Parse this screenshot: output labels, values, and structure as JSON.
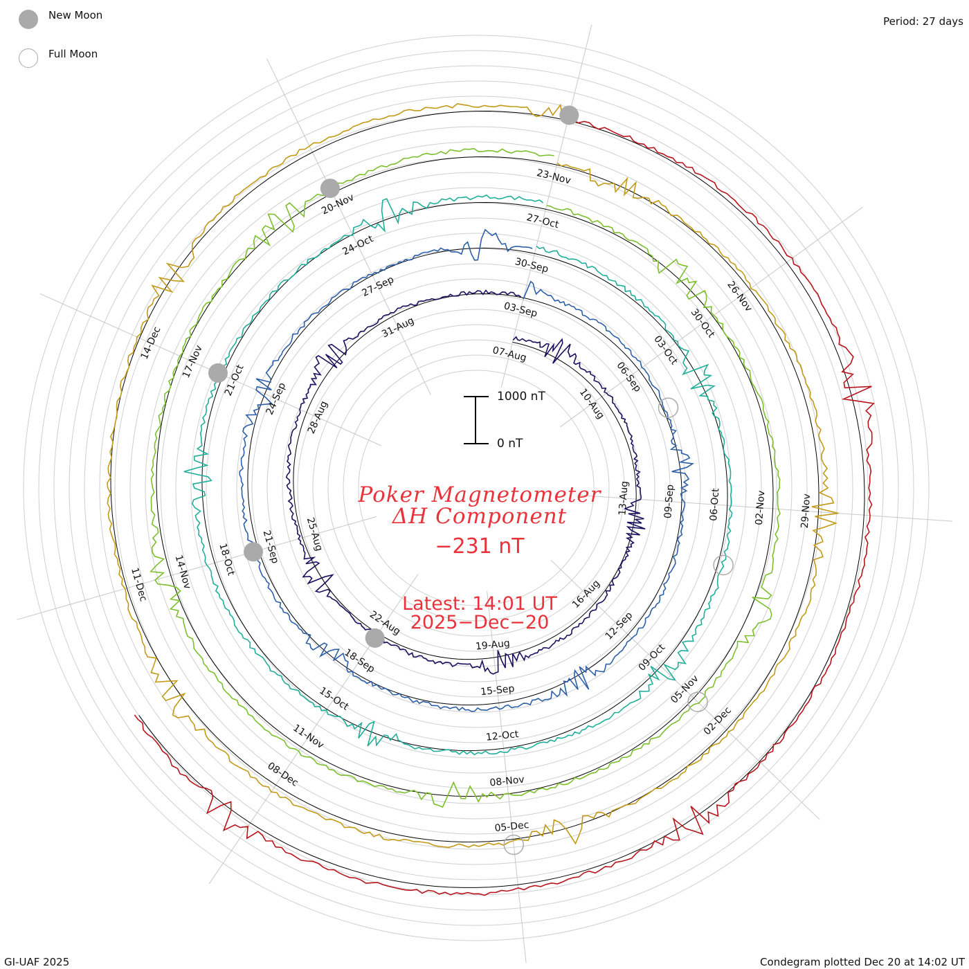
{
  "legend": {
    "new_moon_label": "New Moon",
    "full_moon_label": "Full Moon",
    "new_moon_color": "#aaaaaa",
    "full_moon_color": "#aaaaaa"
  },
  "period_label": "Period: 27 days",
  "title_line1": "Poker Magnetometer",
  "title_line2": "ΔH Component",
  "current_value": "−231 nT",
  "latest_label": "Latest: 14:01 UT",
  "latest_date": "2025−Dec−20",
  "scale": {
    "top_label": "1000 nT",
    "bottom_label": "0 nT",
    "value_nT": 1000
  },
  "footer_left": "GI-UAF 2025",
  "footer_right": "Condegram plotted Dec 20 at 14:02 UT",
  "chart_data": {
    "type": "line",
    "subtype": "spiral condegram (27-day period)",
    "title": "Poker Magnetometer ΔH Component",
    "period_days": 27,
    "rotations": [
      {
        "index": 0,
        "color": "#1a0f5e",
        "date_labels": [
          "07-Aug",
          "10-Aug",
          "13-Aug",
          "16-Aug",
          "19-Aug",
          "22-Aug",
          "25-Aug",
          "28-Aug",
          "31-Aug"
        ]
      },
      {
        "index": 1,
        "color": "#2c5fa8",
        "date_labels": [
          "03-Sep",
          "06-Sep",
          "09-Sep",
          "12-Sep",
          "15-Sep",
          "18-Sep",
          "21-Sep",
          "24-Sep",
          "27-Sep"
        ]
      },
      {
        "index": 2,
        "color": "#1fae9a",
        "date_labels": [
          "30-Sep",
          "03-Oct",
          "06-Oct",
          "09-Oct",
          "12-Oct",
          "15-Oct",
          "18-Oct",
          "21-Oct",
          "24-Oct"
        ]
      },
      {
        "index": 3,
        "color": "#7cbf2c",
        "date_labels": [
          "27-Oct",
          "30-Oct",
          "02-Nov",
          "05-Nov",
          "08-Nov",
          "11-Nov",
          "14-Nov",
          "17-Nov",
          "20-Nov"
        ]
      },
      {
        "index": 4,
        "color": "#c29a17",
        "date_labels": [
          "23-Nov",
          "26-Nov",
          "29-Nov",
          "02-Dec",
          "05-Dec",
          "08-Dec",
          "11-Dec",
          "14-Dec"
        ]
      },
      {
        "index": 5,
        "color": "#b8141c",
        "date_labels": []
      }
    ],
    "new_moons": [
      "22-Aug",
      "21-Sep",
      "21-Oct",
      "20-Nov",
      "20-Dec"
    ],
    "full_moons": [
      "07-Sep",
      "07-Oct",
      "05-Nov",
      "05-Dec"
    ],
    "units": "nT",
    "latest_value_nT": -231
  }
}
